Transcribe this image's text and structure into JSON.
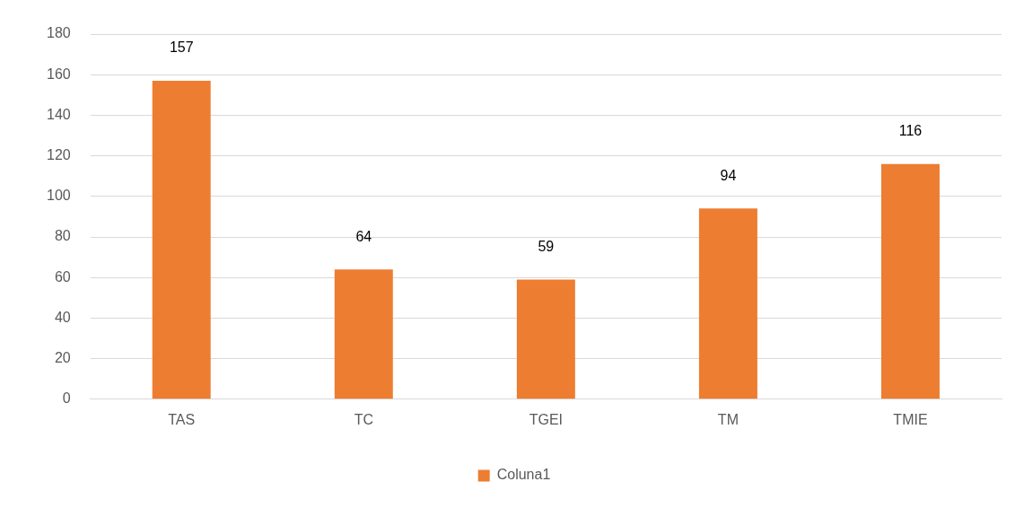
{
  "chart_data": {
    "type": "bar",
    "categories": [
      "TAS",
      "TC",
      "TGEI",
      "TM",
      "TMIE"
    ],
    "series": [
      {
        "name": "Coluna1",
        "color": "#ed7d31",
        "values": [
          157,
          64,
          59,
          94,
          116
        ]
      }
    ],
    "ylim": [
      0,
      180
    ],
    "yticks": [
      0,
      20,
      40,
      60,
      80,
      100,
      120,
      140,
      160,
      180
    ],
    "grid": "y",
    "legend": "bottom",
    "data_labels": true
  }
}
